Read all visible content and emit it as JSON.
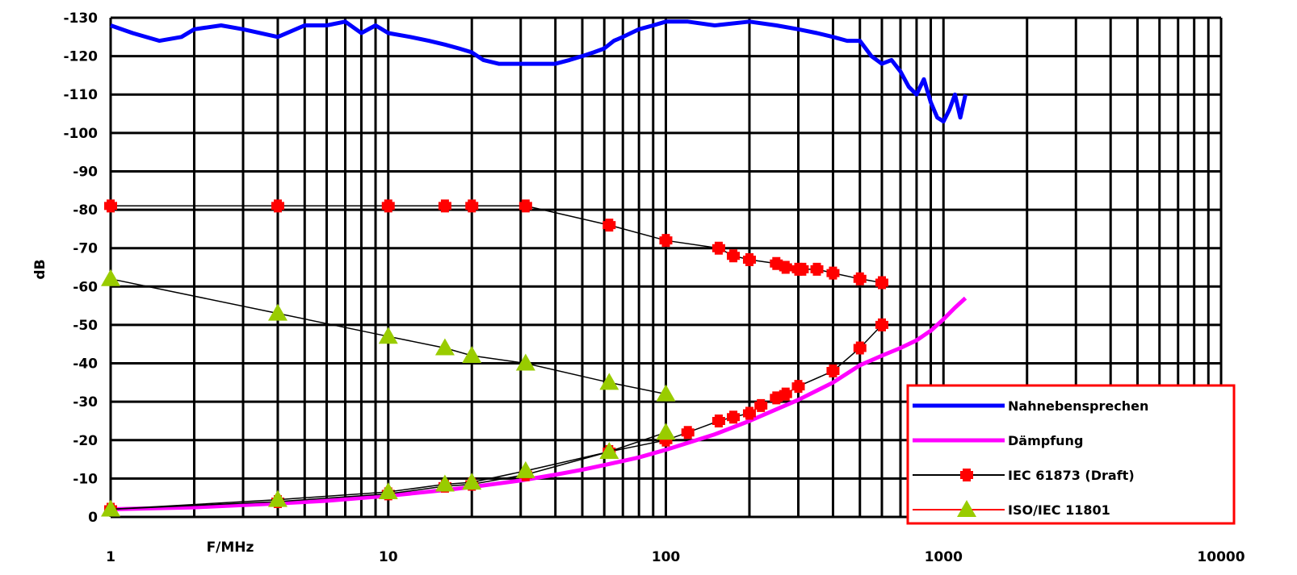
{
  "chart_data": {
    "type": "line",
    "xscale": "log",
    "xlim": [
      1,
      10000
    ],
    "ylim": [
      0,
      -130
    ],
    "xlabel": "F/MHz",
    "ylabel": "dB",
    "x_ticks": [
      1,
      10,
      100,
      1000,
      10000
    ],
    "x_tick_labels": [
      "1",
      "10",
      "100",
      "1000",
      "10000"
    ],
    "y_ticks": [
      0,
      -10,
      -20,
      -30,
      -40,
      -50,
      -60,
      -70,
      -80,
      -90,
      -100,
      -110,
      -120,
      -130
    ],
    "y_tick_labels": [
      "0",
      "-10",
      "-20",
      "-30",
      "-40",
      "-50",
      "-60",
      "-70",
      "-80",
      "-90",
      "-100",
      "-110",
      "-120",
      "-130"
    ],
    "grid": true,
    "legend_position": "bottom-right",
    "series": [
      {
        "name": "Nahnebensprechen",
        "legend_text": "Nahnebensprechen",
        "color": "#0000ff",
        "style": "line-noisy",
        "x": [
          1,
          1.2,
          1.5,
          1.8,
          2,
          2.5,
          3,
          4,
          5,
          6,
          7,
          8,
          9,
          10,
          12,
          14,
          16,
          18,
          20,
          22,
          25,
          30,
          35,
          40,
          45,
          50,
          55,
          60,
          65,
          70,
          80,
          90,
          100,
          120,
          150,
          200,
          250,
          300,
          350,
          400,
          450,
          500,
          550,
          600,
          650,
          700,
          750,
          800,
          850,
          900,
          950,
          1000,
          1050,
          1100,
          1150,
          1200
        ],
        "y": [
          -128,
          -126,
          -124,
          -125,
          -127,
          -128,
          -127,
          -125,
          -128,
          -128,
          -129,
          -126,
          -128,
          -126,
          -125,
          -124,
          -123,
          -122,
          -121,
          -119,
          -118,
          -118,
          -118,
          -118,
          -119,
          -120,
          -121,
          -122,
          -124,
          -125,
          -127,
          -128,
          -129,
          -129,
          -128,
          -129,
          -128,
          -127,
          -126,
          -125,
          -124,
          -124,
          -120,
          -118,
          -119,
          -116,
          -112,
          -110,
          -114,
          -108,
          -104,
          -103,
          -106,
          -110,
          -104,
          -110
        ]
      },
      {
        "name": "Dämpfung",
        "legend_text": "Dämpfung",
        "color": "#ff00ff",
        "style": "line",
        "x": [
          1,
          2,
          4,
          6,
          10,
          16,
          20,
          30,
          40,
          50,
          60,
          80,
          100,
          150,
          200,
          300,
          400,
          500,
          600,
          700,
          800,
          900,
          1000,
          1100,
          1200
        ],
        "y": [
          -2,
          -2.5,
          -3.5,
          -4.2,
          -5.5,
          -7,
          -7.8,
          -9.5,
          -11,
          -12.3,
          -13.5,
          -15.5,
          -17.5,
          -21.5,
          -25,
          -30.5,
          -35,
          -39.5,
          -42,
          -44,
          -46,
          -48.5,
          -51.5,
          -54.5,
          -57
        ]
      },
      {
        "name": "IEC 61873 (Draft)",
        "legend_text": "IEC 61873 (Draft)",
        "color": "#ff0000",
        "line_color": "#000000",
        "style": "line-markers-cross",
        "groups": [
          {
            "x": [
              1,
              4,
              10,
              16,
              20,
              31.25,
              62.5,
              100,
              155,
              175,
              200,
              250,
              270,
              300,
              310,
              350,
              400,
              500,
              600
            ],
            "y": [
              -81,
              -81,
              -81,
              -81,
              -81,
              -81,
              -76,
              -72,
              -70,
              -68,
              -67,
              -66,
              -65,
              -64.5,
              -64.5,
              -64.5,
              -63.5,
              -62,
              -61
            ]
          },
          {
            "x": [
              1,
              4,
              10,
              16,
              20,
              31.25,
              62.5,
              100,
              120,
              155,
              175,
              200,
              220,
              250,
              270,
              300,
              400,
              500,
              600
            ],
            "y": [
              -2,
              -4,
              -6,
              -8,
              -8.5,
              -11,
              -17,
              -20,
              -22,
              -25,
              -26,
              -27,
              -29,
              -31,
              -32,
              -34,
              -38,
              -44,
              -50
            ]
          }
        ]
      },
      {
        "name": "ISO/IEC 11801",
        "legend_text": "ISO/IEC 11801",
        "color": "#99cc00",
        "line_color": "#000000",
        "style": "line-markers-triangle",
        "groups": [
          {
            "x": [
              1,
              4,
              10,
              16,
              20,
              31.25,
              62.5,
              100
            ],
            "y": [
              -62,
              -53,
              -47,
              -44,
              -42,
              -40,
              -35,
              -32
            ]
          },
          {
            "x": [
              1,
              4,
              10,
              16,
              20,
              31.25,
              62.5,
              100
            ],
            "y": [
              -2,
              -4.5,
              -6.5,
              -8.5,
              -9,
              -12,
              -17,
              -22
            ]
          }
        ]
      }
    ]
  }
}
